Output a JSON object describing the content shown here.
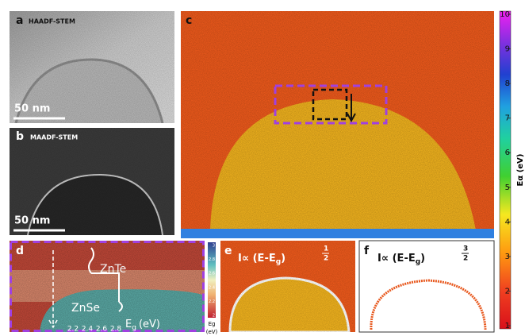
{
  "panels": {
    "a": {
      "label": "a",
      "title": "HAADF-STEM",
      "scale_bar": "50 nm"
    },
    "b": {
      "label": "b",
      "title": "MAADF-STEM",
      "scale_bar": "50 nm"
    },
    "c": {
      "label": "c"
    },
    "d": {
      "label": "d",
      "upper": "ZnTe",
      "lower": "ZnSe",
      "axis_label": "E",
      "axis_label_sub": "g",
      "axis_label_unit": "(eV)",
      "axis_ticks": [
        "2.2",
        "2.4",
        "2.6",
        "2.8"
      ]
    },
    "e": {
      "label": "e",
      "formula": "I∝ (E-E",
      "formula_sub": "g",
      "formula_close": ")",
      "exp_num": "1",
      "exp_den": "2"
    },
    "f": {
      "label": "f",
      "formula": "I∝ (E-E",
      "formula_sub": "g",
      "formula_close": ")",
      "exp_num": "3",
      "exp_den": "2"
    }
  },
  "colorbar": {
    "ticks": [
      1,
      2,
      3,
      4,
      5,
      6,
      7,
      8,
      9,
      10
    ],
    "label": "Eα (eV)"
  },
  "small_colorbar": {
    "ticks": [
      3,
      2.8,
      2.6,
      2.4,
      2.2,
      2
    ],
    "label": "Eg",
    "unit": "(eV)"
  }
}
